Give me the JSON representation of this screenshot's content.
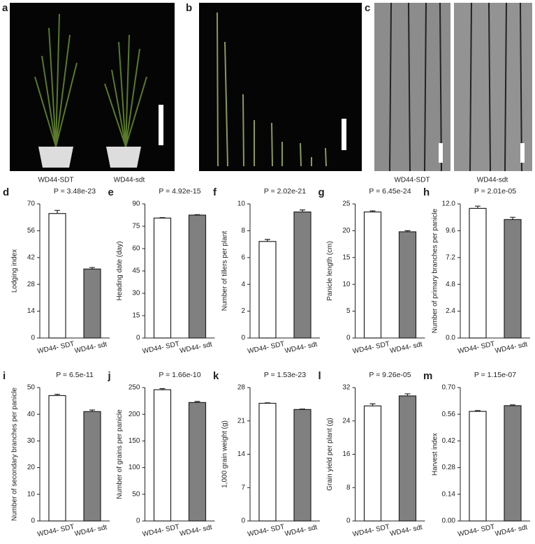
{
  "panels": [
    {
      "letter": "a",
      "labels": [
        "WD44-SDT",
        "WD44-sdt"
      ]
    },
    {
      "letter": "b",
      "labels": []
    },
    {
      "letter": "c",
      "labels": [
        "WD44-SDT",
        "WD44-sdt"
      ]
    }
  ],
  "chart_data": [
    {
      "type": "bar",
      "letter": "d",
      "annotation": "P = 3.48e-23",
      "ylabel": "Lodging index",
      "categories": [
        "WD44- SDT",
        "WD44- sdt"
      ],
      "values": [
        65,
        36
      ],
      "errors": [
        1.6,
        0.8
      ],
      "colors": [
        "#ffffff",
        "#808080"
      ],
      "ylim": [
        0,
        70
      ],
      "yticks": [
        0,
        14,
        28,
        42,
        56,
        70
      ]
    },
    {
      "type": "bar",
      "letter": "e",
      "annotation": "P = 4.92e-15",
      "ylabel": "Heading date (day)",
      "categories": [
        "WD44- SDT",
        "WD44- sdt"
      ],
      "values": [
        80.5,
        82.5
      ],
      "errors": [
        0.3,
        0.3
      ],
      "colors": [
        "#ffffff",
        "#808080"
      ],
      "ylim": [
        0,
        90
      ],
      "yticks": [
        0,
        15,
        30,
        45,
        60,
        75,
        90
      ]
    },
    {
      "type": "bar",
      "letter": "f",
      "annotation": "P = 2.02e-21",
      "ylabel": "Number of tillers per plant",
      "categories": [
        "WD44- SDT",
        "WD44- sdt"
      ],
      "values": [
        7.2,
        9.4
      ],
      "errors": [
        0.15,
        0.15
      ],
      "colors": [
        "#ffffff",
        "#808080"
      ],
      "ylim": [
        0,
        10
      ],
      "yticks": [
        0,
        2,
        4,
        6,
        8,
        10
      ]
    },
    {
      "type": "bar",
      "letter": "g",
      "annotation": "P = 6.45e-24",
      "ylabel": "Panicle length (cm)",
      "categories": [
        "WD44- SDT",
        "WD44- sdt"
      ],
      "values": [
        23.5,
        19.8
      ],
      "errors": [
        0.2,
        0.2
      ],
      "colors": [
        "#ffffff",
        "#808080"
      ],
      "ylim": [
        0,
        25
      ],
      "yticks": [
        0,
        5,
        10,
        15,
        20,
        25
      ]
    },
    {
      "type": "bar",
      "letter": "h",
      "annotation": "P = 2.01e-05",
      "ylabel": "Number of primary branches per panicle",
      "categories": [
        "WD44- SDT",
        "WD44- sdt"
      ],
      "values": [
        11.6,
        10.6
      ],
      "errors": [
        0.2,
        0.2
      ],
      "colors": [
        "#ffffff",
        "#808080"
      ],
      "ylim": [
        0,
        12
      ],
      "yticks": [
        {
          "value": 0,
          "label": "0.0"
        },
        2.4,
        4.8,
        7.2,
        9.6,
        {
          "value": 12,
          "label": "12.0"
        }
      ]
    },
    {
      "type": "bar",
      "letter": "i",
      "annotation": "P = 6.5e-11",
      "ylabel": "Number of secondary branches per panicle",
      "categories": [
        "WD44- SDT",
        "WD44- sdt"
      ],
      "values": [
        47,
        41
      ],
      "errors": [
        0.5,
        0.6
      ],
      "colors": [
        "#ffffff",
        "#808080"
      ],
      "ylim": [
        0,
        50
      ],
      "yticks": [
        0,
        10,
        20,
        30,
        40,
        50
      ]
    },
    {
      "type": "bar",
      "letter": "j",
      "annotation": "P = 1.66e-10",
      "ylabel": "Number of grains per panicle",
      "categories": [
        "WD44- SDT",
        "WD44- sdt"
      ],
      "values": [
        246,
        222
      ],
      "errors": [
        2,
        2
      ],
      "colors": [
        "#ffffff",
        "#808080"
      ],
      "ylim": [
        0,
        250
      ],
      "yticks": [
        0,
        50,
        100,
        150,
        200,
        250
      ]
    },
    {
      "type": "bar",
      "letter": "k",
      "annotation": "P = 1.53e-23",
      "ylabel": "1,000 grain weight (g)",
      "categories": [
        "WD44- SDT",
        "WD44- sdt"
      ],
      "values": [
        24.7,
        23.4
      ],
      "errors": [
        0.1,
        0.1
      ],
      "colors": [
        "#ffffff",
        "#808080"
      ],
      "ylim": [
        0,
        28
      ],
      "yticks": [
        0,
        7,
        14,
        21,
        28
      ]
    },
    {
      "type": "bar",
      "letter": "l",
      "annotation": "P = 9.26e-05",
      "ylabel": "Grain yield per plant (g)",
      "categories": [
        "WD44- SDT",
        "WD44- sdt"
      ],
      "values": [
        27.6,
        30
      ],
      "errors": [
        0.5,
        0.5
      ],
      "colors": [
        "#ffffff",
        "#808080"
      ],
      "ylim": [
        0,
        32
      ],
      "yticks": [
        0,
        8,
        16,
        24,
        32
      ]
    },
    {
      "type": "bar",
      "letter": "m",
      "annotation": "P = 1.15e-07",
      "ylabel": "Harvest index",
      "categories": [
        "WD44- SDT",
        "WD44- sdt"
      ],
      "values": [
        0.575,
        0.605
      ],
      "errors": [
        0.004,
        0.004
      ],
      "colors": [
        "#ffffff",
        "#808080"
      ],
      "ylim": [
        0,
        0.7
      ],
      "yticks": [
        {
          "value": 0,
          "label": "0.00"
        },
        0.14,
        0.28,
        0.42,
        0.56,
        {
          "value": 0.7,
          "label": "0.70"
        }
      ]
    }
  ]
}
